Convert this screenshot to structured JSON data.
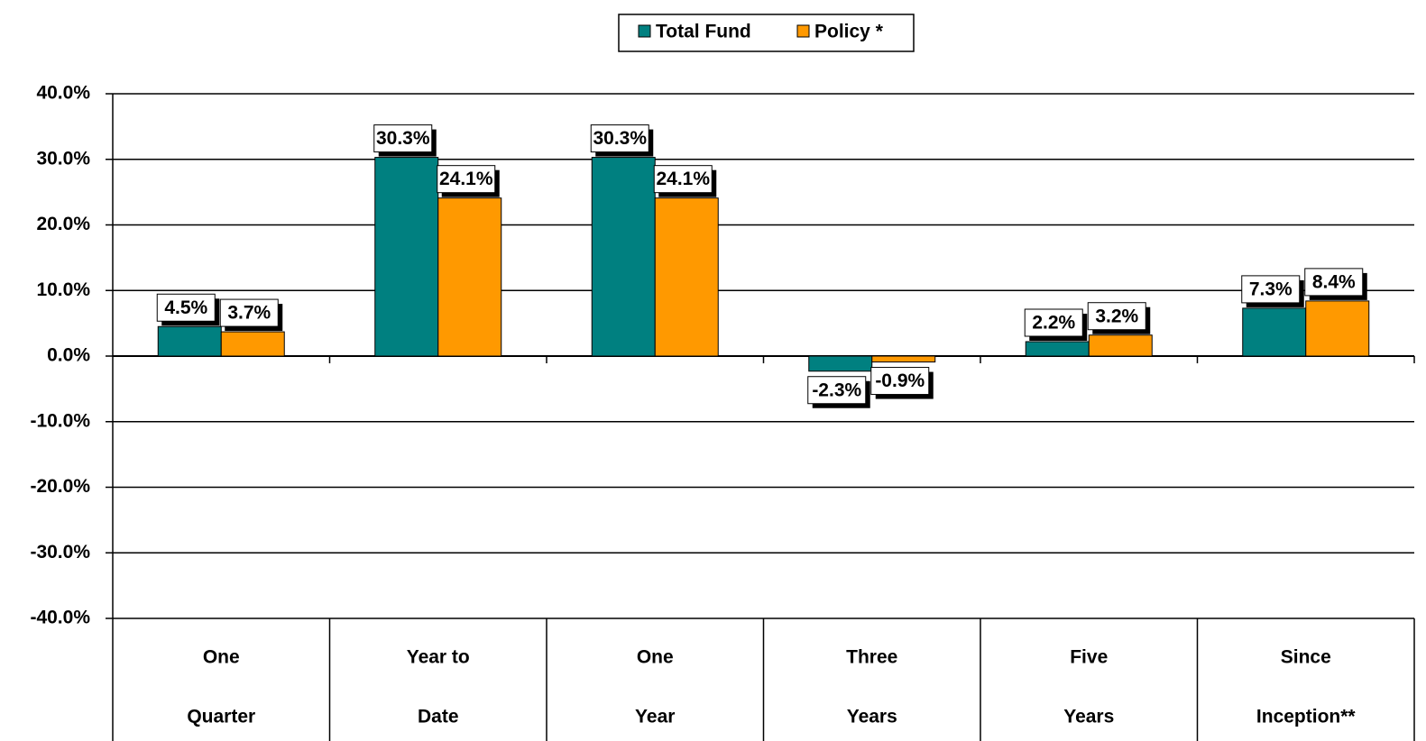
{
  "chart_data": {
    "type": "bar",
    "categories": [
      [
        "One",
        "Quarter"
      ],
      [
        "Year to",
        "Date"
      ],
      [
        "One",
        "Year"
      ],
      [
        "Three",
        "Years"
      ],
      [
        "Five",
        "Years"
      ],
      [
        "Since",
        "Inception**"
      ]
    ],
    "series": [
      {
        "name": "Total Fund",
        "color": "#008080",
        "values": [
          4.5,
          30.3,
          30.3,
          -2.3,
          2.2,
          7.3
        ],
        "value_labels": [
          "4.5%",
          "30.3%",
          "30.3%",
          "-2.3%",
          "2.2%",
          "7.3%"
        ]
      },
      {
        "name": "Policy *",
        "color": "#ff9900",
        "values": [
          3.7,
          24.1,
          24.1,
          -0.9,
          3.2,
          8.4
        ],
        "value_labels": [
          "3.7%",
          "24.1%",
          "24.1%",
          "-0.9%",
          "3.2%",
          "8.4%"
        ]
      }
    ],
    "ylim": [
      -40,
      40
    ],
    "yticks": [
      {
        "value": -40,
        "label": "-40.0%"
      },
      {
        "value": -30,
        "label": "-30.0%"
      },
      {
        "value": -20,
        "label": "-20.0%"
      },
      {
        "value": -10,
        "label": "-10.0%"
      },
      {
        "value": 0,
        "label": "0.0%"
      },
      {
        "value": 10,
        "label": "10.0%"
      },
      {
        "value": 20,
        "label": "20.0%"
      },
      {
        "value": 30,
        "label": "30.0%"
      },
      {
        "value": 40,
        "label": "40.0%"
      }
    ],
    "grid": true,
    "legend": "top"
  }
}
